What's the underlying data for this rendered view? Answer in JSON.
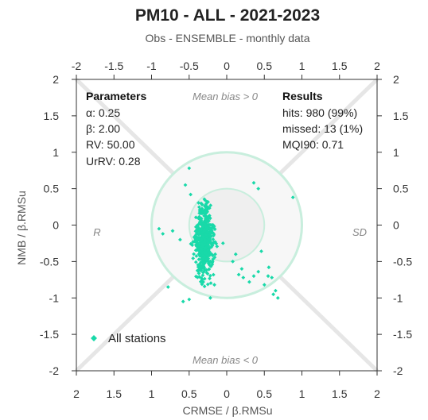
{
  "chart_data": {
    "type": "scatter",
    "title": "PM10 - ALL - 2021-2023",
    "subtitle": "Obs - ENSEMBLE - monthly data",
    "xlabel": "CRMSE / β.RMSu",
    "ylabel": "NMB / β.RMSu",
    "xlim": [
      -2,
      2
    ],
    "ylim": [
      -2,
      2
    ],
    "top_ticks": [
      "-2",
      "-1.5",
      "-1",
      "-0.5",
      "0",
      "0.5",
      "1",
      "1.5",
      "2"
    ],
    "bottom_ticks": [
      "2",
      "1.5",
      "1",
      "0.5",
      "0",
      "0.5",
      "1",
      "1.5",
      "2"
    ],
    "y_ticks": [
      "2",
      "1.5",
      "1",
      "0.5",
      "0",
      "-0.5",
      "-1",
      "-1.5",
      "-2"
    ],
    "circles_radius": [
      0.5,
      1.0
    ],
    "annotations": {
      "top": "Mean bias > 0",
      "bottom": "Mean bias < 0",
      "left": "R",
      "right": "SD"
    },
    "parameters": {
      "header": "Parameters",
      "lines": [
        "α: 0.25",
        "β: 2.00",
        "RV: 50.00",
        "UrRV: 0.28"
      ]
    },
    "results": {
      "header": "Results",
      "lines": [
        "hits: 980 (99%)",
        "missed: 13 (1%)",
        "MQI90: 0.71"
      ]
    },
    "legend": "All stations",
    "series_color": "#19d9a9",
    "outlier_points": [
      [
        -0.5,
        0.78
      ],
      [
        -0.55,
        0.55
      ],
      [
        -0.48,
        0.42
      ],
      [
        -0.78,
        -0.85
      ],
      [
        -0.9,
        -0.05
      ],
      [
        -0.85,
        -0.12
      ],
      [
        -0.72,
        -0.08
      ],
      [
        -0.62,
        -0.2
      ],
      [
        -0.58,
        -1.05
      ],
      [
        -0.5,
        -1.02
      ],
      [
        0.36,
        0.58
      ],
      [
        0.42,
        0.5
      ],
      [
        0.88,
        0.38
      ],
      [
        0.56,
        -0.58
      ],
      [
        0.46,
        -0.36
      ],
      [
        0.55,
        -0.7
      ],
      [
        0.6,
        -0.72
      ],
      [
        0.65,
        -0.9
      ],
      [
        0.68,
        -1.0
      ],
      [
        0.42,
        -0.64
      ],
      [
        0.36,
        -0.7
      ],
      [
        0.3,
        -0.78
      ],
      [
        0.22,
        -0.72
      ],
      [
        0.16,
        -0.68
      ],
      [
        0.5,
        -0.82
      ],
      [
        0.62,
        -0.95
      ],
      [
        -0.05,
        -0.25
      ],
      [
        0.08,
        -0.5
      ],
      [
        0.12,
        -0.4
      ],
      [
        0.2,
        -0.6
      ]
    ]
  }
}
